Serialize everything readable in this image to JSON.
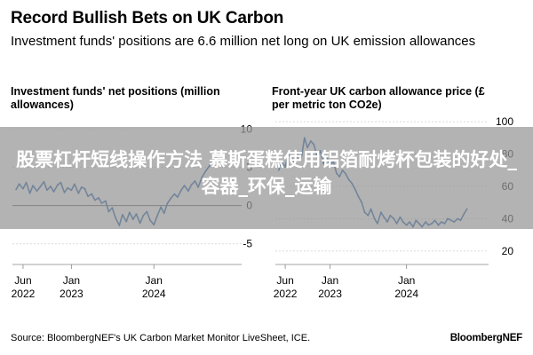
{
  "title": "Record Bullish Bets on UK Carbon",
  "subtitle": "Investment funds' positions are 6.6 million net long on UK emission allowances",
  "source": "Source: BloombergNEF's UK Carbon Market Monitor LiveSheet, ICE.",
  "brand": "BloombergNEF",
  "overlay": {
    "text": "股票杠杆短线操作方法 慕斯蛋糕使用铝箔耐烤杯包装的好处_容器_环保_运输"
  },
  "chart_data": [
    {
      "type": "line",
      "title": "Investment funds' net positions (million allowances)",
      "color": "#1a5aa6",
      "ylim": [
        -7,
        12
      ],
      "y_ticks": [
        "10",
        "5",
        "0",
        "-5"
      ],
      "y_tick_values": [
        10,
        5,
        0,
        -5
      ],
      "x_ticks": [
        [
          "Jun",
          "2022"
        ],
        [
          "Jan",
          "2023"
        ],
        [
          "Jan",
          "2024"
        ]
      ],
      "x_tick_dates": [
        "2022-06-01",
        "2023-01-01",
        "2024-01-01"
      ],
      "xlim": [
        "2022-04-15",
        "2024-12-15"
      ],
      "series": [
        {
          "x": [
            "2022-05-01",
            "2022-05-15",
            "2022-06-01",
            "2022-06-15",
            "2022-07-01",
            "2022-07-15",
            "2022-08-01",
            "2022-08-15",
            "2022-09-01",
            "2022-09-15",
            "2022-10-01",
            "2022-10-15",
            "2022-11-01",
            "2022-11-15",
            "2022-12-01",
            "2022-12-15",
            "2023-01-01",
            "2023-01-15",
            "2023-02-01",
            "2023-02-15",
            "2023-03-01",
            "2023-03-15",
            "2023-04-01",
            "2023-04-15",
            "2023-05-01",
            "2023-05-15",
            "2023-06-01",
            "2023-06-15",
            "2023-07-01",
            "2023-07-15",
            "2023-08-01",
            "2023-08-15",
            "2023-09-01",
            "2023-09-15",
            "2023-10-01",
            "2023-10-15",
            "2023-11-01",
            "2023-11-15",
            "2023-12-01",
            "2023-12-15",
            "2024-01-01",
            "2024-01-15",
            "2024-02-01",
            "2024-02-15",
            "2024-03-01",
            "2024-03-15",
            "2024-04-01",
            "2024-04-15",
            "2024-05-01",
            "2024-05-15",
            "2024-06-01",
            "2024-06-15",
            "2024-07-01",
            "2024-07-15",
            "2024-08-01",
            "2024-08-15",
            "2024-09-01",
            "2024-09-15",
            "2024-10-01",
            "2024-10-15"
          ],
          "values": [
            2.1,
            2.8,
            2.2,
            3.0,
            1.6,
            2.6,
            1.9,
            2.4,
            3.1,
            2.0,
            2.5,
            1.8,
            2.7,
            3.0,
            1.7,
            2.3,
            2.0,
            2.8,
            1.6,
            2.4,
            2.2,
            1.2,
            1.5,
            0.7,
            1.0,
            0.3,
            0.6,
            -0.8,
            -0.3,
            -1.6,
            -2.6,
            -1.2,
            -2.1,
            -0.9,
            -1.8,
            -1.1,
            -2.3,
            -1.3,
            -0.8,
            -1.9,
            -2.5,
            -1.4,
            -0.2,
            -1.0,
            0.3,
            0.9,
            1.5,
            1.1,
            2.0,
            2.6,
            1.9,
            2.7,
            3.2,
            2.4,
            3.7,
            4.4,
            5.1,
            5.9,
            6.3,
            6.6
          ]
        }
      ]
    },
    {
      "type": "line",
      "title": "Front-year UK carbon allowance price (£ per metric ton CO2e)",
      "color": "#1a5aa6",
      "ylim": [
        15,
        105
      ],
      "y_ticks": [
        "100",
        "80",
        "60",
        "40",
        "20"
      ],
      "y_tick_values": [
        100,
        80,
        60,
        40,
        20
      ],
      "x_ticks": [
        [
          "Jun",
          "2022"
        ],
        [
          "Jan",
          "2023"
        ],
        [
          "Jan",
          "2024"
        ]
      ],
      "x_tick_dates": [
        "2022-06-01",
        "2023-01-01",
        "2024-01-01"
      ],
      "xlim": [
        "2022-04-15",
        "2024-12-15"
      ],
      "series": [
        {
          "x": [
            "2022-05-01",
            "2022-05-15",
            "2022-06-01",
            "2022-06-15",
            "2022-07-01",
            "2022-07-15",
            "2022-08-01",
            "2022-08-15",
            "2022-09-01",
            "2022-09-15",
            "2022-10-01",
            "2022-10-15",
            "2022-11-01",
            "2022-11-15",
            "2022-12-01",
            "2022-12-15",
            "2023-01-01",
            "2023-01-15",
            "2023-02-01",
            "2023-02-15",
            "2023-03-01",
            "2023-03-15",
            "2023-04-01",
            "2023-04-15",
            "2023-05-01",
            "2023-05-15",
            "2023-06-01",
            "2023-06-15",
            "2023-07-01",
            "2023-07-15",
            "2023-08-01",
            "2023-08-15",
            "2023-09-01",
            "2023-09-15",
            "2023-10-01",
            "2023-10-15",
            "2023-11-01",
            "2023-11-15",
            "2023-12-01",
            "2023-12-15",
            "2024-01-01",
            "2024-01-15",
            "2024-02-01",
            "2024-02-15",
            "2024-03-01",
            "2024-03-15",
            "2024-04-01",
            "2024-04-15",
            "2024-05-01",
            "2024-05-15",
            "2024-06-01",
            "2024-06-15",
            "2024-07-01",
            "2024-07-15",
            "2024-08-01",
            "2024-08-15",
            "2024-09-01",
            "2024-09-15",
            "2024-10-01",
            "2024-10-15"
          ],
          "values": [
            70,
            75,
            72,
            80,
            78,
            74,
            80,
            76,
            90,
            84,
            88,
            86,
            78,
            82,
            74,
            79,
            72,
            76,
            68,
            66,
            70,
            68,
            64,
            62,
            58,
            54,
            50,
            44,
            42,
            46,
            40,
            37,
            44,
            41,
            38,
            42,
            40,
            37,
            41,
            38,
            36,
            38,
            35,
            39,
            37,
            35,
            38,
            36,
            37,
            39,
            36,
            38,
            37,
            40,
            39,
            38,
            40,
            39,
            43,
            46
          ]
        }
      ]
    }
  ]
}
